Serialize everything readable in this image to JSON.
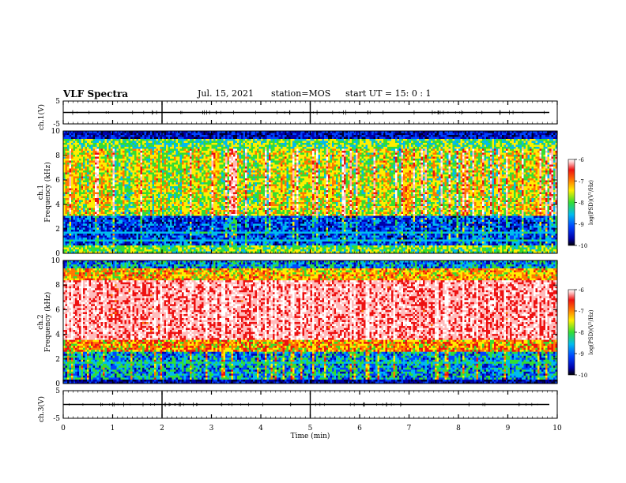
{
  "header": {
    "title": "VLF Spectra",
    "date": "Jul. 15, 2021",
    "station_label": "station=",
    "station": "MOS",
    "start_label": "start UT =",
    "start_time": "15: 0 : 1"
  },
  "chart_data": [
    {
      "type": "line",
      "name": "ch1-waveform",
      "ylabel": "ch.1(V)",
      "ylim": [
        -5,
        5
      ],
      "yticks": [
        "5",
        "-5"
      ],
      "xlim": [
        0,
        10
      ],
      "level": 0
    },
    {
      "type": "heatmap",
      "name": "ch1-spectrogram",
      "ylabel_top": "ch.1",
      "ylabel": "Frequency (kHz)",
      "ylim": [
        0,
        10
      ],
      "yticks": [
        "0",
        "2",
        "4",
        "6",
        "8",
        "10"
      ],
      "xlim": [
        0,
        10
      ],
      "colorbar": {
        "label": "log(PSD)(V²/Hz)",
        "range": [
          -10,
          -6
        ],
        "ticks": [
          "-6",
          "-7",
          "-8",
          "-9",
          "-10"
        ]
      }
    },
    {
      "type": "heatmap",
      "name": "ch2-spectrogram",
      "ylabel_top": "ch.2",
      "ylabel": "Frequency (kHz)",
      "ylim": [
        0,
        10
      ],
      "yticks": [
        "0",
        "2",
        "4",
        "6",
        "8",
        "10"
      ],
      "xlim": [
        0,
        10
      ],
      "colorbar": {
        "label": "log(PSD)(V²/Hz)",
        "range": [
          -10,
          -6
        ],
        "ticks": [
          "-6",
          "-7",
          "-8",
          "-9",
          "-10"
        ]
      }
    },
    {
      "type": "line",
      "name": "ch3-waveform",
      "ylabel": "ch.3(V)",
      "ylim": [
        -5,
        5
      ],
      "yticks": [
        "5",
        "-5"
      ],
      "xlim": [
        0,
        10
      ],
      "xlabel": "Time (min)",
      "xticks": [
        "0",
        "1",
        "2",
        "3",
        "4",
        "5",
        "6",
        "7",
        "8",
        "9",
        "10"
      ],
      "level": 0
    }
  ]
}
